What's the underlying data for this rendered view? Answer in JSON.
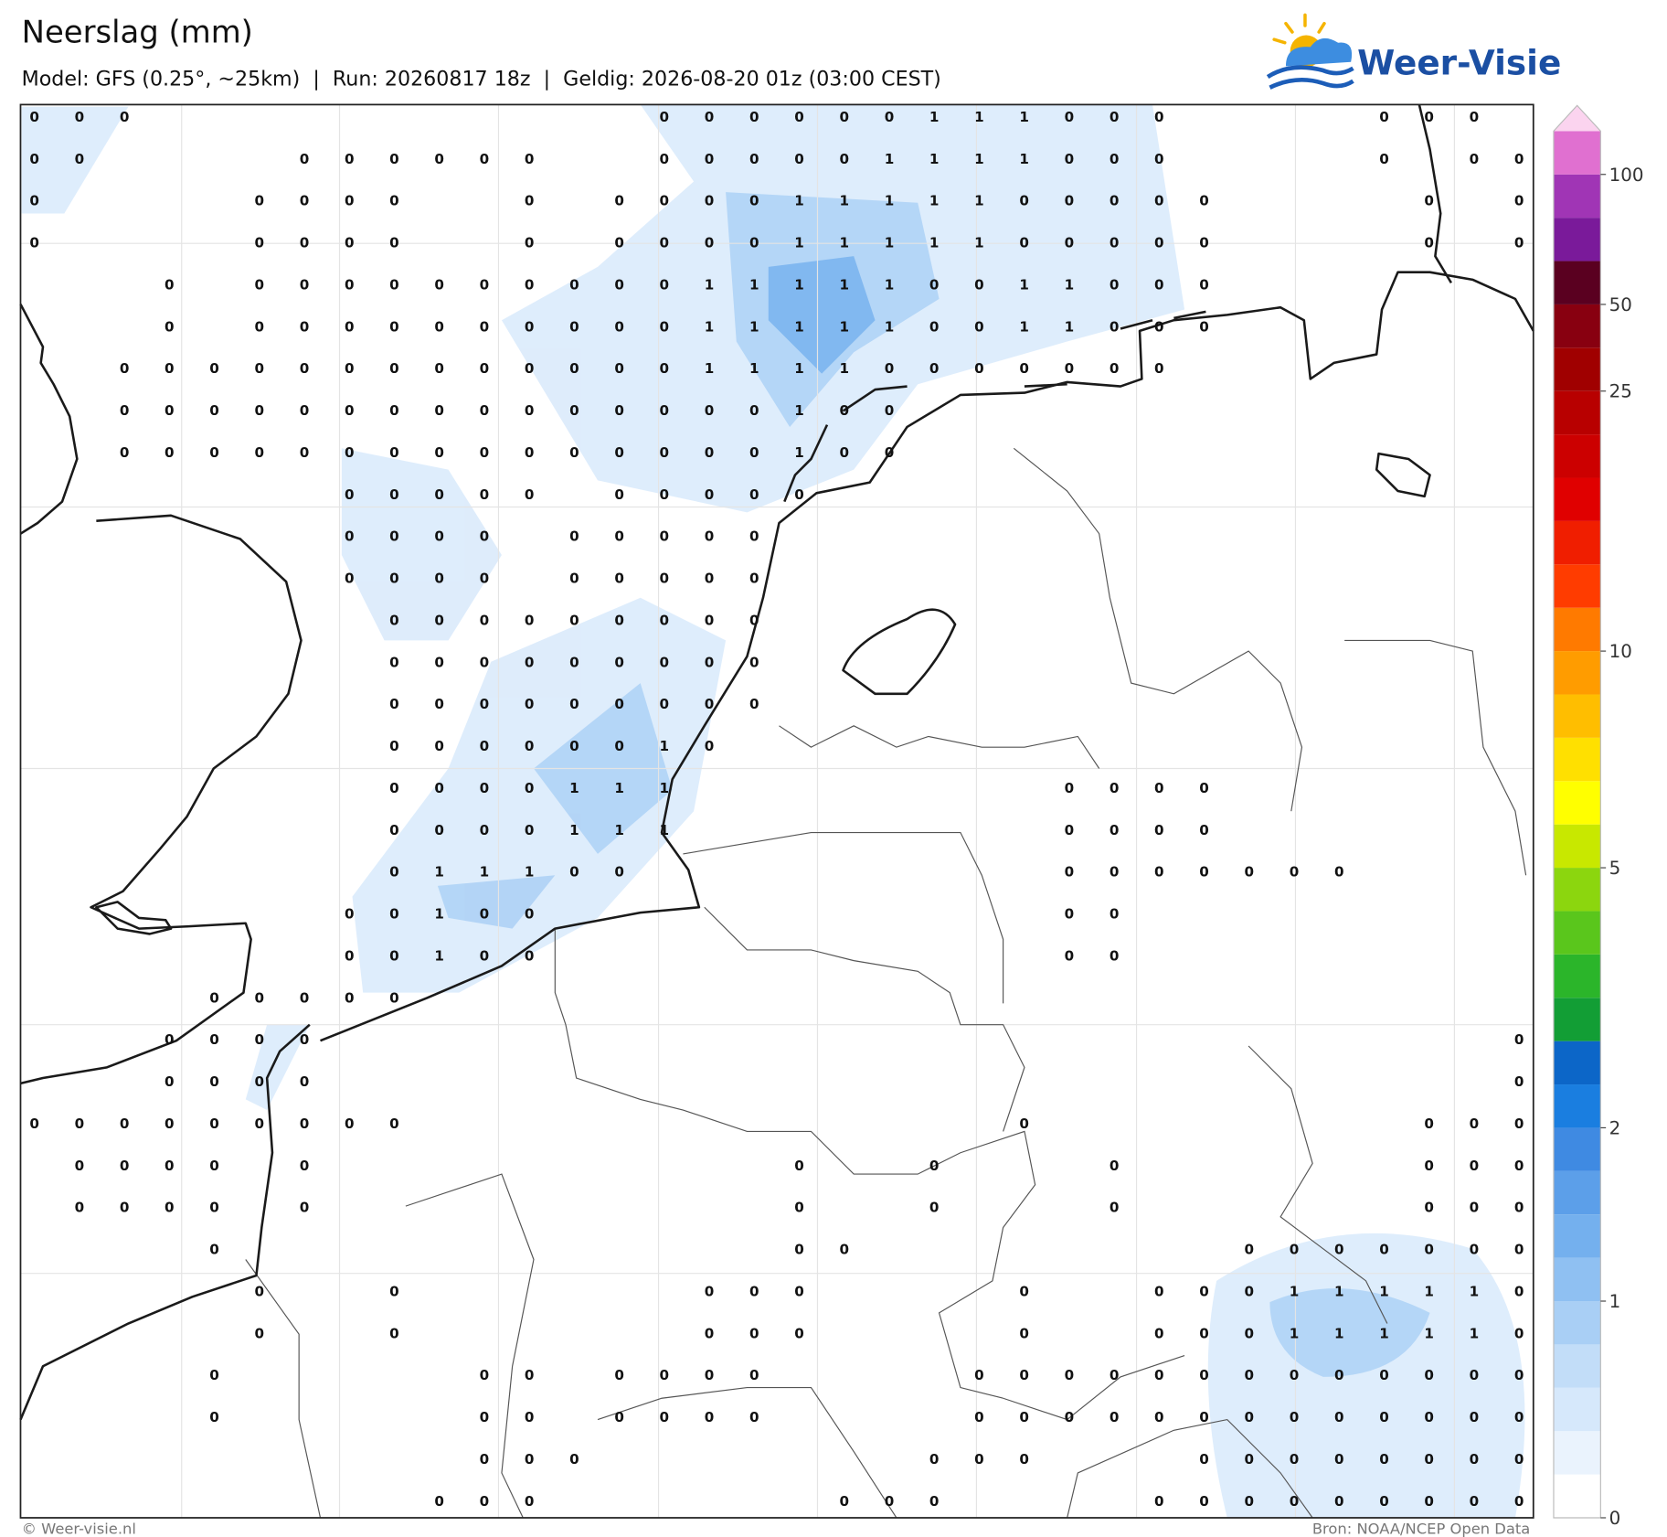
{
  "header": {
    "title": "Neerslag (mm)",
    "subtitle": "Model: GFS (0.25°, ~25km)  |  Run: 20260817 18z  |  Geldig: 2026-08-20 01z (03:00 CEST)"
  },
  "logo": {
    "text": "Weer-Visie"
  },
  "map": {
    "grid": [
      [
        0,
        0,
        0,
        null,
        null,
        null,
        null,
        null,
        null,
        null,
        null,
        null,
        null,
        null,
        0,
        0,
        0,
        0,
        0,
        0,
        1,
        1,
        1,
        0,
        0,
        0,
        null,
        null,
        null,
        null,
        0,
        0,
        0,
        null
      ],
      [
        0,
        0,
        null,
        null,
        null,
        null,
        0,
        0,
        0,
        0,
        0,
        0,
        null,
        null,
        0,
        0,
        0,
        0,
        0,
        1,
        1,
        1,
        1,
        0,
        0,
        0,
        null,
        null,
        null,
        null,
        0,
        null,
        0,
        0
      ],
      [
        0,
        null,
        null,
        null,
        null,
        0,
        0,
        0,
        0,
        null,
        null,
        0,
        null,
        0,
        0,
        0,
        0,
        1,
        1,
        1,
        1,
        1,
        0,
        0,
        0,
        0,
        0,
        null,
        null,
        null,
        null,
        0,
        null,
        0
      ],
      [
        0,
        null,
        null,
        null,
        null,
        0,
        0,
        0,
        0,
        null,
        null,
        0,
        null,
        0,
        0,
        0,
        0,
        1,
        1,
        1,
        1,
        1,
        0,
        0,
        0,
        0,
        0,
        null,
        null,
        null,
        null,
        0,
        null,
        0
      ],
      [
        null,
        null,
        null,
        0,
        null,
        0,
        0,
        0,
        0,
        0,
        0,
        0,
        0,
        0,
        0,
        1,
        1,
        1,
        1,
        1,
        0,
        0,
        1,
        1,
        0,
        0,
        0,
        null,
        null,
        null,
        null,
        null,
        null,
        null
      ],
      [
        null,
        null,
        null,
        0,
        null,
        0,
        0,
        0,
        0,
        0,
        0,
        0,
        0,
        0,
        0,
        1,
        1,
        1,
        1,
        1,
        0,
        0,
        1,
        1,
        0,
        0,
        0,
        null,
        null,
        null,
        null,
        null,
        null,
        null
      ],
      [
        null,
        null,
        0,
        0,
        0,
        0,
        0,
        0,
        0,
        0,
        0,
        0,
        0,
        0,
        0,
        1,
        1,
        1,
        1,
        0,
        0,
        0,
        0,
        0,
        0,
        0,
        null,
        null,
        null,
        null,
        null,
        null,
        null,
        null
      ],
      [
        null,
        null,
        0,
        0,
        0,
        0,
        0,
        0,
        0,
        0,
        0,
        0,
        0,
        0,
        0,
        0,
        0,
        1,
        0,
        0,
        null,
        null,
        null,
        null,
        null,
        null,
        null,
        null,
        null,
        null,
        null,
        null,
        null,
        null
      ],
      [
        null,
        null,
        0,
        0,
        0,
        0,
        0,
        0,
        0,
        0,
        0,
        0,
        0,
        0,
        0,
        0,
        0,
        1,
        0,
        0,
        null,
        null,
        null,
        null,
        null,
        null,
        null,
        null,
        null,
        null,
        null,
        null,
        null,
        null
      ],
      [
        null,
        null,
        null,
        null,
        null,
        null,
        null,
        0,
        0,
        0,
        0,
        0,
        null,
        0,
        0,
        0,
        0,
        0,
        null,
        null,
        null,
        null,
        null,
        null,
        null,
        null,
        null,
        null,
        null,
        null,
        null,
        null,
        null,
        null
      ],
      [
        null,
        null,
        null,
        null,
        null,
        null,
        null,
        0,
        0,
        0,
        0,
        null,
        0,
        0,
        0,
        0,
        0,
        null,
        null,
        null,
        null,
        null,
        null,
        null,
        null,
        null,
        null,
        null,
        null,
        null,
        null,
        null,
        null,
        null
      ],
      [
        null,
        null,
        null,
        null,
        null,
        null,
        null,
        0,
        0,
        0,
        0,
        null,
        0,
        0,
        0,
        0,
        0,
        null,
        null,
        null,
        null,
        null,
        null,
        null,
        null,
        null,
        null,
        null,
        null,
        null,
        null,
        null,
        null,
        null
      ],
      [
        null,
        null,
        null,
        null,
        null,
        null,
        null,
        null,
        0,
        0,
        0,
        0,
        0,
        0,
        0,
        0,
        0,
        null,
        null,
        null,
        null,
        null,
        null,
        null,
        null,
        null,
        null,
        null,
        null,
        null,
        null,
        null,
        null,
        null
      ],
      [
        null,
        null,
        null,
        null,
        null,
        null,
        null,
        null,
        0,
        0,
        0,
        0,
        0,
        0,
        0,
        0,
        0,
        null,
        null,
        null,
        null,
        null,
        null,
        null,
        null,
        null,
        null,
        null,
        null,
        null,
        null,
        null,
        null,
        null
      ],
      [
        null,
        null,
        null,
        null,
        null,
        null,
        null,
        null,
        0,
        0,
        0,
        0,
        0,
        0,
        0,
        0,
        0,
        null,
        null,
        null,
        null,
        null,
        null,
        null,
        null,
        null,
        null,
        null,
        null,
        null,
        null,
        null,
        null,
        null
      ],
      [
        null,
        null,
        null,
        null,
        null,
        null,
        null,
        null,
        0,
        0,
        0,
        0,
        0,
        0,
        1,
        0,
        null,
        null,
        null,
        null,
        null,
        null,
        null,
        null,
        null,
        null,
        null,
        null,
        null,
        null,
        null,
        null,
        null,
        null
      ],
      [
        null,
        null,
        null,
        null,
        null,
        null,
        null,
        null,
        0,
        0,
        0,
        0,
        1,
        1,
        1,
        null,
        null,
        null,
        null,
        null,
        null,
        null,
        null,
        0,
        0,
        0,
        0,
        null,
        null,
        null,
        null,
        null,
        null,
        null
      ],
      [
        null,
        null,
        null,
        null,
        null,
        null,
        null,
        null,
        0,
        0,
        0,
        0,
        1,
        1,
        1,
        null,
        null,
        null,
        null,
        null,
        null,
        null,
        null,
        0,
        0,
        0,
        0,
        null,
        null,
        null,
        null,
        null,
        null,
        null
      ],
      [
        null,
        null,
        null,
        null,
        null,
        null,
        null,
        null,
        0,
        1,
        1,
        1,
        0,
        0,
        null,
        null,
        null,
        null,
        null,
        null,
        null,
        null,
        null,
        0,
        0,
        0,
        0,
        0,
        0,
        0,
        null,
        null,
        null,
        null
      ],
      [
        null,
        null,
        null,
        null,
        null,
        null,
        null,
        0,
        0,
        1,
        0,
        0,
        null,
        null,
        null,
        null,
        null,
        null,
        null,
        null,
        null,
        null,
        null,
        0,
        0,
        null,
        null,
        null,
        null,
        null,
        null,
        null,
        null,
        null
      ],
      [
        null,
        null,
        null,
        null,
        null,
        null,
        null,
        0,
        0,
        1,
        0,
        0,
        null,
        null,
        null,
        null,
        null,
        null,
        null,
        null,
        null,
        null,
        null,
        0,
        0,
        null,
        null,
        null,
        null,
        null,
        null,
        null,
        null,
        null
      ],
      [
        null,
        null,
        null,
        null,
        0,
        0,
        0,
        0,
        0,
        null,
        null,
        null,
        null,
        null,
        null,
        null,
        null,
        null,
        null,
        null,
        null,
        null,
        null,
        null,
        null,
        null,
        null,
        null,
        null,
        null,
        null,
        null,
        null,
        null
      ],
      [
        null,
        null,
        null,
        0,
        0,
        0,
        0,
        null,
        null,
        null,
        null,
        null,
        null,
        null,
        null,
        null,
        null,
        null,
        null,
        null,
        null,
        null,
        null,
        null,
        null,
        null,
        null,
        null,
        null,
        null,
        null,
        null,
        null,
        0
      ],
      [
        null,
        null,
        null,
        0,
        0,
        0,
        0,
        null,
        null,
        null,
        null,
        null,
        null,
        null,
        null,
        null,
        null,
        null,
        null,
        null,
        null,
        null,
        null,
        null,
        null,
        null,
        null,
        null,
        null,
        null,
        null,
        null,
        null,
        0
      ],
      [
        0,
        0,
        0,
        0,
        0,
        0,
        0,
        0,
        0,
        null,
        null,
        null,
        null,
        null,
        null,
        null,
        null,
        null,
        null,
        null,
        null,
        null,
        0,
        null,
        null,
        null,
        null,
        null,
        null,
        null,
        null,
        0,
        0,
        0
      ],
      [
        null,
        0,
        0,
        0,
        0,
        null,
        0,
        null,
        null,
        null,
        null,
        null,
        null,
        null,
        null,
        null,
        null,
        0,
        null,
        null,
        0,
        null,
        null,
        null,
        0,
        null,
        null,
        null,
        null,
        null,
        null,
        0,
        0,
        0
      ],
      [
        null,
        0,
        0,
        0,
        0,
        null,
        0,
        null,
        null,
        null,
        null,
        null,
        null,
        null,
        null,
        null,
        null,
        0,
        null,
        null,
        0,
        null,
        null,
        null,
        0,
        null,
        null,
        null,
        null,
        null,
        null,
        0,
        0,
        0
      ],
      [
        null,
        null,
        null,
        null,
        0,
        null,
        null,
        null,
        null,
        null,
        null,
        null,
        null,
        null,
        null,
        null,
        null,
        0,
        0,
        null,
        null,
        null,
        null,
        null,
        null,
        null,
        null,
        0,
        0,
        0,
        0,
        0,
        0,
        0
      ],
      [
        null,
        null,
        null,
        null,
        null,
        0,
        null,
        null,
        0,
        null,
        null,
        null,
        null,
        null,
        null,
        0,
        0,
        0,
        null,
        null,
        null,
        null,
        0,
        null,
        null,
        0,
        0,
        0,
        1,
        1,
        1,
        1,
        1,
        0
      ],
      [
        null,
        null,
        null,
        null,
        null,
        0,
        null,
        null,
        0,
        null,
        null,
        null,
        null,
        null,
        null,
        0,
        0,
        0,
        null,
        null,
        null,
        null,
        0,
        null,
        null,
        0,
        0,
        0,
        1,
        1,
        1,
        1,
        1,
        0
      ],
      [
        null,
        null,
        null,
        null,
        0,
        null,
        null,
        null,
        null,
        null,
        0,
        0,
        null,
        0,
        0,
        0,
        0,
        null,
        null,
        null,
        null,
        0,
        0,
        0,
        0,
        0,
        0,
        0,
        0,
        0,
        0,
        0,
        0,
        0
      ],
      [
        null,
        null,
        null,
        null,
        0,
        null,
        null,
        null,
        null,
        null,
        0,
        0,
        null,
        0,
        0,
        0,
        0,
        null,
        null,
        null,
        null,
        0,
        0,
        0,
        0,
        0,
        0,
        0,
        0,
        0,
        0,
        0,
        0,
        0
      ],
      [
        null,
        null,
        null,
        null,
        null,
        null,
        null,
        null,
        null,
        null,
        0,
        0,
        0,
        null,
        null,
        null,
        null,
        null,
        null,
        null,
        0,
        0,
        0,
        null,
        null,
        null,
        0,
        0,
        0,
        0,
        0,
        0,
        0,
        0
      ],
      [
        null,
        null,
        null,
        null,
        null,
        null,
        null,
        null,
        null,
        0,
        0,
        0,
        null,
        null,
        null,
        null,
        null,
        null,
        0,
        0,
        0,
        null,
        null,
        null,
        null,
        0,
        0,
        0,
        0,
        0,
        0,
        0,
        0,
        0
      ]
    ]
  },
  "colorbar": {
    "colors": [
      "#ffffff",
      "#eaf3fd",
      "#d6e8fb",
      "#c2ddf8",
      "#a9cff5",
      "#8fc0f2",
      "#74b0ee",
      "#5c9fe9",
      "#3f8ae2",
      "#1a7ee0",
      "#0c66c8",
      "#129e35",
      "#2bb52a",
      "#5ac61c",
      "#8cd60e",
      "#c8e800",
      "#ffff00",
      "#ffe000",
      "#ffbe00",
      "#ff9c00",
      "#ff7a00",
      "#ff3c00",
      "#f01e00",
      "#e00000",
      "#cc0000",
      "#b80000",
      "#a00000",
      "#880010",
      "#5a0020",
      "#7a1a9a",
      "#a035b5",
      "#e070d0"
    ],
    "extend_color": "#fbd4ef",
    "ticks": [
      0,
      1,
      2,
      5,
      10,
      25,
      50,
      100
    ]
  },
  "footer": {
    "left": "© Weer-visie.nl",
    "right": "Bron: NOAA/NCEP Open Data"
  }
}
